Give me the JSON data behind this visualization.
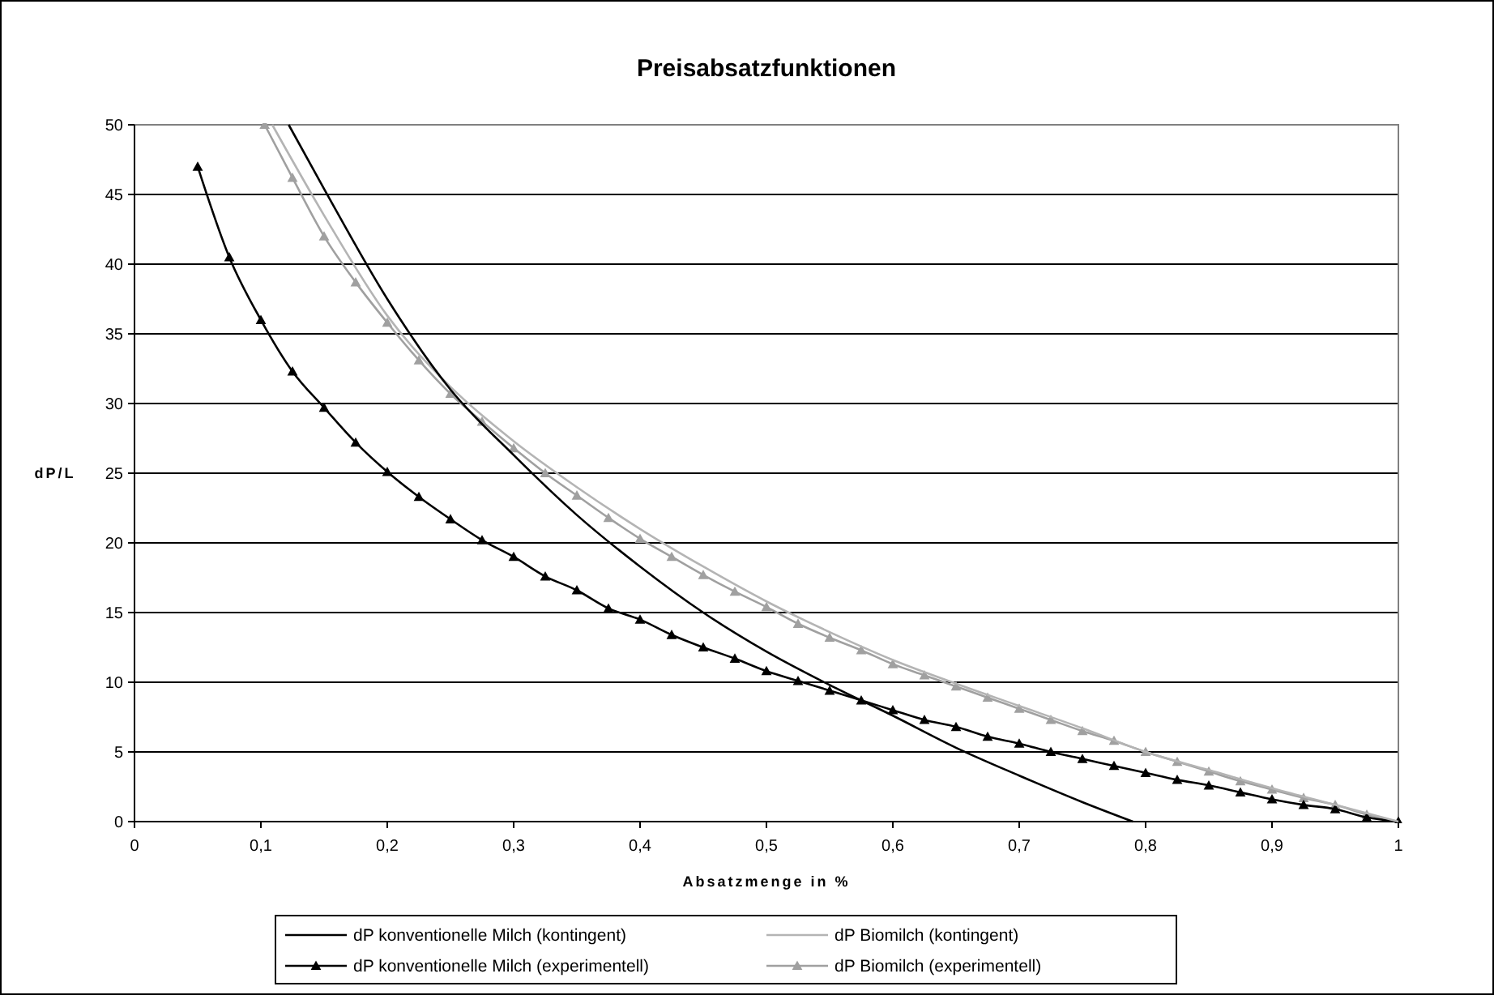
{
  "chart_data": {
    "type": "line",
    "title": "Preisabsatzfunktionen",
    "xlabel": "Absatzmenge in %",
    "ylabel": "dP/L",
    "xlim": [
      0,
      1
    ],
    "ylim": [
      0,
      50
    ],
    "xticks": [
      0,
      {
        "value": 0.1,
        "label": "0,1"
      },
      {
        "value": 0.2,
        "label": "0,2"
      },
      {
        "value": 0.3,
        "label": "0,3"
      },
      {
        "value": 0.4,
        "label": "0,4"
      },
      {
        "value": 0.5,
        "label": "0,5"
      },
      {
        "value": 0.6,
        "label": "0,6"
      },
      {
        "value": 0.7,
        "label": "0,7"
      },
      {
        "value": 0.8,
        "label": "0,8"
      },
      {
        "value": 0.9,
        "label": "0,9"
      },
      1
    ],
    "yticks": [
      0,
      5,
      10,
      15,
      20,
      25,
      30,
      35,
      40,
      45,
      50
    ],
    "grid": "y",
    "legend": "bottom",
    "series": [
      {
        "name": "dP konventionelle Milch (kontingent)",
        "color": "#000000",
        "marker": "none",
        "x": [
          0.122,
          0.15,
          0.2,
          0.25,
          0.3,
          0.35,
          0.4,
          0.45,
          0.5,
          0.55,
          0.6,
          0.65,
          0.7,
          0.75,
          0.79
        ],
        "values": [
          50,
          45.4,
          37.5,
          31,
          26.3,
          22,
          18.3,
          15,
          12.2,
          9.8,
          7.6,
          5.3,
          3.3,
          1.4,
          0
        ]
      },
      {
        "name": "dP Biomilch (kontingent)",
        "color": "#b4b4b4",
        "marker": "none",
        "x": [
          0.109,
          0.15,
          0.2,
          0.25,
          0.3,
          0.35,
          0.4,
          0.45,
          0.5,
          0.55,
          0.6,
          0.65,
          0.7,
          0.75,
          0.8,
          0.85,
          0.9,
          0.95,
          1
        ],
        "values": [
          50,
          43.5,
          36.3,
          31.2,
          27.3,
          24,
          21,
          18.3,
          15.8,
          13.6,
          11.6,
          9.9,
          8.3,
          6.7,
          5,
          3.7,
          2.4,
          1.2,
          0
        ]
      },
      {
        "name": "dP konventionelle Milch (experimentell)",
        "color": "#000000",
        "marker": "triangle",
        "x": [
          0.05,
          0.075,
          0.1,
          0.125,
          0.15,
          0.175,
          0.2,
          0.225,
          0.25,
          0.275,
          0.3,
          0.325,
          0.35,
          0.375,
          0.4,
          0.425,
          0.45,
          0.475,
          0.5,
          0.525,
          0.55,
          0.575,
          0.6,
          0.625,
          0.65,
          0.675,
          0.7,
          0.725,
          0.75,
          0.775,
          0.8,
          0.825,
          0.85,
          0.875,
          0.9,
          0.925,
          0.95,
          0.975,
          1
        ],
        "values": [
          47,
          40.5,
          36,
          32.3,
          29.7,
          27.2,
          25.1,
          23.3,
          21.7,
          20.2,
          19,
          17.6,
          16.6,
          15.3,
          14.5,
          13.4,
          12.5,
          11.7,
          10.8,
          10.1,
          9.4,
          8.7,
          8,
          7.3,
          6.8,
          6.1,
          5.6,
          5,
          4.5,
          4,
          3.5,
          3,
          2.6,
          2.1,
          1.6,
          1.2,
          0.9,
          0.3,
          0
        ]
      },
      {
        "name": "dP Biomilch (experimentell)",
        "color": "#a0a0a0",
        "marker": "triangle",
        "x": [
          0.103,
          0.125,
          0.15,
          0.175,
          0.2,
          0.225,
          0.25,
          0.275,
          0.3,
          0.325,
          0.35,
          0.375,
          0.4,
          0.425,
          0.45,
          0.475,
          0.5,
          0.525,
          0.55,
          0.575,
          0.6,
          0.625,
          0.65,
          0.675,
          0.7,
          0.725,
          0.75,
          0.775,
          0.8,
          0.825,
          0.85,
          0.875,
          0.9,
          0.925,
          0.95,
          0.975,
          1
        ],
        "values": [
          50,
          46.2,
          42,
          38.7,
          35.8,
          33.1,
          30.7,
          28.7,
          26.8,
          25,
          23.4,
          21.8,
          20.3,
          19,
          17.7,
          16.5,
          15.4,
          14.2,
          13.2,
          12.3,
          11.3,
          10.5,
          9.7,
          8.9,
          8.1,
          7.3,
          6.5,
          5.8,
          5,
          4.3,
          3.6,
          2.9,
          2.3,
          1.7,
          1.2,
          0.5,
          0
        ]
      }
    ]
  }
}
